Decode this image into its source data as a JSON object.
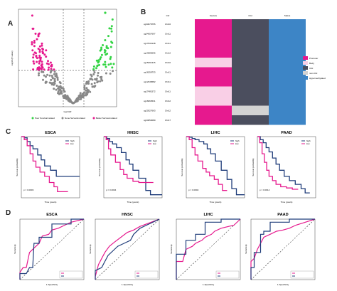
{
  "panel_labels": {
    "a": "A",
    "b": "B",
    "c": "C",
    "d": "D"
  },
  "colors": {
    "pink": "#e6198e",
    "light_pink": "#f9cfe6",
    "green": "#33d444",
    "grey": "#888888",
    "dark_grey": "#4b4e5e",
    "blue": "#3d85c6",
    "navy": "#1f3c7a",
    "light_grey": "#d3d3d3"
  },
  "volcano": {
    "x_label": "log2 HR",
    "y_label": "-log10 (P-value)",
    "legend": [
      "Poor Survival related",
      "None Survival related",
      "Better Survival related"
    ]
  },
  "heatmap": {
    "columns": [
      "Chr",
      "Feature",
      "CGI",
      "Status"
    ],
    "rows": [
      {
        "id": "cg03078755",
        "chr": "Chr16",
        "feature": "Promoter",
        "cgi": "CGI"
      },
      {
        "id": "cg04057697",
        "chr": "Chr11",
        "feature": "Promoter",
        "cgi": "CGI"
      },
      {
        "id": "cg17933148",
        "chr": "Chr11",
        "feature": "Promoter",
        "cgi": "CGI"
      },
      {
        "id": "cg13085696",
        "chr": "Chr12",
        "feature": "Promoter",
        "cgi": "CGI"
      },
      {
        "id": "cg15291315",
        "chr": "Chr10",
        "feature": "Body",
        "cgi": "CGI"
      },
      {
        "id": "cg16258733",
        "chr": "Chr11",
        "feature": "Promoter",
        "cgi": "CGI"
      },
      {
        "id": "cg12345682",
        "chr": "Chr11",
        "feature": "Promoter",
        "cgi": "CGI"
      },
      {
        "id": "cg17481572",
        "chr": "Chr11",
        "feature": "Body",
        "cgi": "CGI"
      },
      {
        "id": "cg16063531",
        "chr": "Chr12",
        "feature": "Body",
        "cgi": "CGI"
      },
      {
        "id": "cg20327663",
        "chr": "Chr12",
        "feature": "Promoter",
        "cgi": "non-CGI"
      },
      {
        "id": "cg24653080",
        "chr": "Chr17",
        "feature": "Promoter",
        "cgi": "CGI"
      }
    ],
    "legend": [
      "Promoter",
      "Body",
      "CGI",
      "non-CGI",
      "Hypermethylated"
    ]
  },
  "km": {
    "cancers": [
      "ESCA",
      "HNSC",
      "LIHC",
      "PAAD"
    ],
    "x_label": "Time (years)",
    "y_label": "Survival probability",
    "legend": [
      "high",
      "low"
    ],
    "pvalues": [
      "p = 0.0003",
      "p = 0.0004",
      "p = 0.0002",
      "p = 0.0014"
    ]
  },
  "roc": {
    "cancers": [
      "ESCA",
      "HNSC",
      "LIHC",
      "PAAD"
    ],
    "x_label": "1-Specificity",
    "y_label": "Sensitivity"
  }
}
